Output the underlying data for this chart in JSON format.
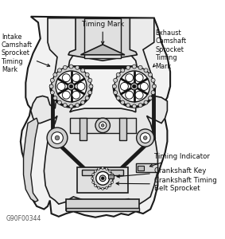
{
  "bg_color": "#ffffff",
  "line_color": "#1a1a1a",
  "fill_light": "#e8e8e8",
  "fill_med": "#cccccc",
  "fill_dark": "#888888",
  "white_fill": "#ffffff",
  "figsize": [
    2.83,
    3.0
  ],
  "dpi": 100,
  "labels": {
    "timing_mark": "Timing Mark",
    "intake": "Intake\nCamshaft\nSprocket\nTiming\nMark",
    "exhaust": "Exhaust\nCamshaft\nSprocket\nTiming\nMark",
    "timing_indicator": "Timing Indicator",
    "crankshaft_key": "Crankshaft Key",
    "crankshaft_timing": "Crankshaft Timing\nBelt Sprocket",
    "ref": "G90F00344"
  }
}
